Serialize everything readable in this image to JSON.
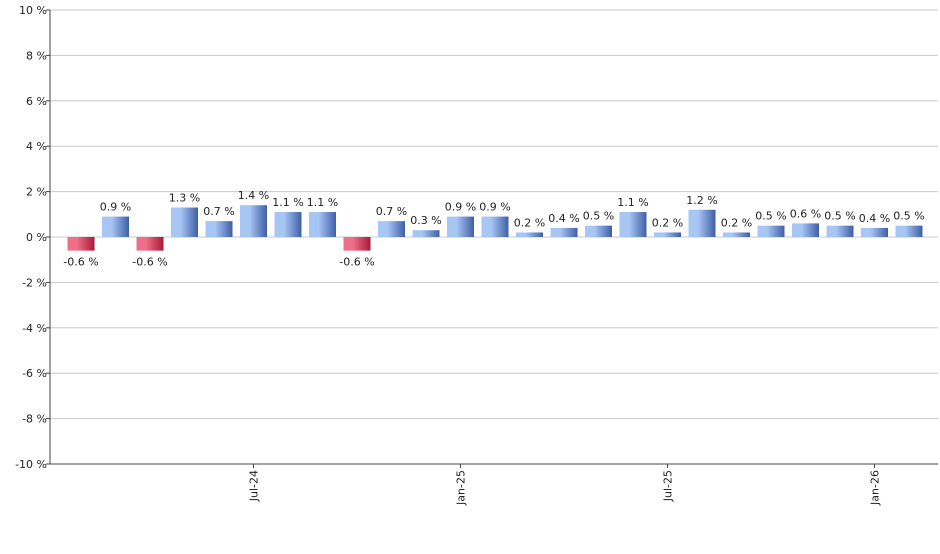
{
  "chart_data": {
    "type": "bar",
    "categories": [
      null,
      null,
      null,
      null,
      null,
      "Jul-24",
      null,
      null,
      null,
      null,
      null,
      "Jan-25",
      null,
      null,
      null,
      null,
      null,
      "Jul-25",
      null,
      null,
      null,
      null,
      null,
      "Jan-26",
      null
    ],
    "values": [
      -0.6,
      0.9,
      -0.6,
      1.3,
      0.7,
      1.4,
      1.1,
      1.1,
      -0.6,
      0.7,
      0.3,
      0.9,
      0.9,
      0.2,
      0.4,
      0.5,
      1.1,
      0.2,
      1.2,
      0.2,
      0.5,
      0.6,
      0.5,
      0.4,
      0.5
    ],
    "value_labels": [
      "-0.6 %",
      "0.9 %",
      "-0.6 %",
      "1.3 %",
      "0.7 %",
      "1.4 %",
      "1.1 %",
      "1.1 %",
      "-0.6 %",
      "0.7 %",
      "0.3 %",
      "0.9 %",
      "0.9 %",
      "0.2 %",
      "0.4 %",
      "0.5 %",
      "1.1 %",
      "0.2 %",
      "1.2 %",
      "0.2 %",
      "0.5 %",
      "0.6 %",
      "0.5 %",
      "0.4 %",
      "0.5 %"
    ],
    "colors": {
      "positive": [
        "#3f5fa6",
        "#a8c6f4"
      ],
      "negative": [
        "#a8183a",
        "#ee6f88"
      ]
    },
    "ylim": [
      -10,
      10
    ],
    "yticks": [
      {
        "value": -10,
        "label": "-10 %"
      },
      {
        "value": -8,
        "label": "-8 %"
      },
      {
        "value": -6,
        "label": "-6 %"
      },
      {
        "value": -4,
        "label": "-4 %"
      },
      {
        "value": -2,
        "label": "-2 %"
      },
      {
        "value": 0,
        "label": "0 %"
      },
      {
        "value": 2,
        "label": "2 %"
      },
      {
        "value": 4,
        "label": "4 %"
      },
      {
        "value": 6,
        "label": "6 %"
      },
      {
        "value": 8,
        "label": "8 %"
      },
      {
        "value": 10,
        "label": "10 %"
      }
    ],
    "grid": true
  }
}
